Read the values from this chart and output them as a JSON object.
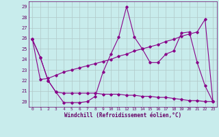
{
  "xlabel": "Windchill (Refroidissement éolien,°C)",
  "background_color": "#c8ecec",
  "line_color": "#880088",
  "grid_color": "#b0c8c8",
  "xlim": [
    -0.5,
    23.5
  ],
  "ylim": [
    19.5,
    29.5
  ],
  "yticks": [
    20,
    21,
    22,
    23,
    24,
    25,
    26,
    27,
    28,
    29
  ],
  "xticks": [
    0,
    1,
    2,
    3,
    4,
    5,
    6,
    7,
    8,
    9,
    10,
    11,
    12,
    13,
    14,
    15,
    16,
    17,
    18,
    19,
    20,
    21,
    22,
    23
  ],
  "series": [
    [
      25.9,
      24.2,
      22.0,
      20.9,
      19.9,
      19.9,
      19.9,
      20.0,
      20.5,
      22.8,
      24.5,
      26.1,
      29.0,
      26.1,
      25.0,
      23.7,
      23.7,
      24.5,
      24.8,
      26.5,
      26.6,
      23.7,
      21.5,
      20.0
    ],
    [
      25.9,
      24.2,
      22.0,
      20.9,
      20.8,
      20.8,
      20.8,
      20.8,
      20.8,
      20.7,
      20.7,
      20.7,
      20.6,
      20.6,
      20.5,
      20.5,
      20.4,
      20.4,
      20.3,
      20.2,
      20.1,
      20.1,
      20.0,
      20.0
    ],
    [
      25.9,
      22.1,
      22.2,
      22.5,
      22.8,
      23.0,
      23.2,
      23.4,
      23.6,
      23.8,
      24.0,
      24.3,
      24.5,
      24.8,
      25.0,
      25.2,
      25.4,
      25.7,
      25.9,
      26.2,
      26.4,
      26.6,
      27.8,
      20.0
    ]
  ]
}
